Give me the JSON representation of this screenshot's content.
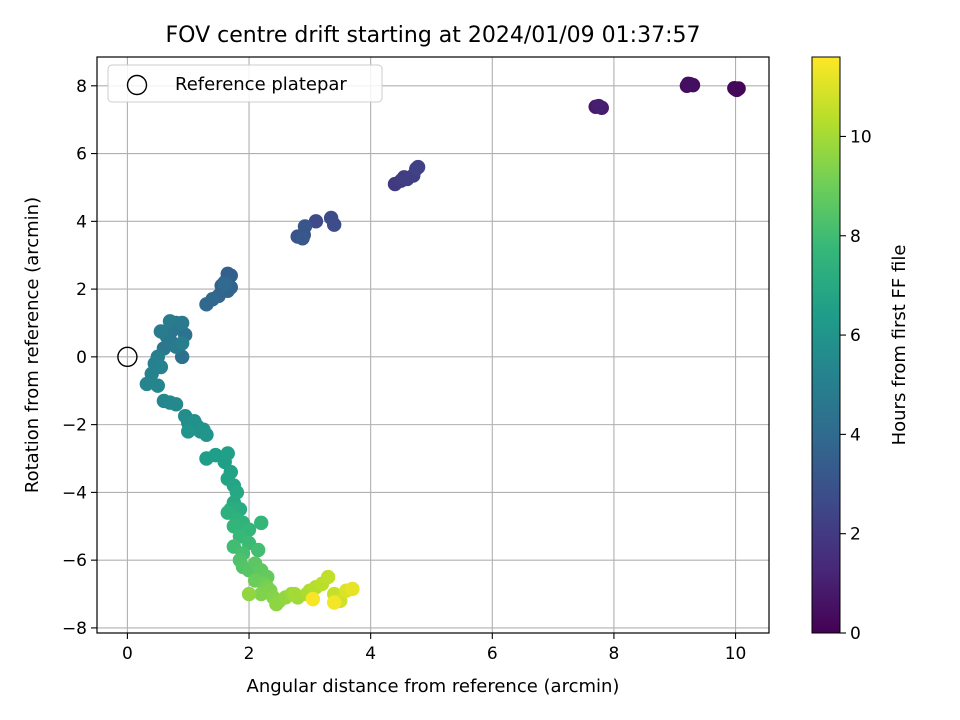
{
  "chart_data": {
    "type": "scatter",
    "title": "FOV centre drift starting at 2024/01/09 01:37:57",
    "xlabel": "Angular distance from reference (arcmin)",
    "ylabel": "Rotation from reference (arcmin)",
    "xlim": [
      -0.5,
      10.55
    ],
    "ylim": [
      -8.15,
      8.85
    ],
    "xticks": [
      0,
      2,
      4,
      6,
      8,
      10
    ],
    "yticks": [
      -8,
      -6,
      -4,
      -2,
      0,
      2,
      4,
      6,
      8
    ],
    "grid": true,
    "legend": {
      "placement": "top-left",
      "entries": [
        {
          "label": "Reference platepar",
          "marker": "open-circle"
        }
      ]
    },
    "reference_point": {
      "x": 0,
      "y": 0
    },
    "colorbar": {
      "label": "Hours from first FF file",
      "range": [
        0,
        11.6
      ],
      "ticks": [
        0,
        2,
        4,
        6,
        8,
        10
      ],
      "colormap": "viridis"
    },
    "colormap_stops": [
      "#440154",
      "#482878",
      "#3e4989",
      "#31688e",
      "#26828e",
      "#1f9e89",
      "#35b779",
      "#6ece58",
      "#b5de2b",
      "#fde725"
    ],
    "series": [
      {
        "points": [
          [
            10.0,
            7.9,
            0.05
          ],
          [
            10.05,
            7.92,
            0.1
          ],
          [
            10.02,
            7.88,
            0.15
          ],
          [
            9.98,
            7.93,
            0.2
          ],
          [
            9.2,
            8.0,
            0.3
          ],
          [
            9.25,
            8.05,
            0.35
          ],
          [
            9.3,
            8.02,
            0.4
          ],
          [
            9.22,
            8.06,
            0.45
          ],
          [
            7.7,
            7.38,
            0.8
          ],
          [
            7.8,
            7.35,
            0.9
          ],
          [
            7.75,
            7.4,
            1.0
          ],
          [
            4.4,
            5.1,
            2.0
          ],
          [
            4.5,
            5.2,
            2.05
          ],
          [
            4.55,
            5.3,
            2.1
          ],
          [
            4.6,
            5.25,
            2.15
          ],
          [
            4.7,
            5.35,
            2.2
          ],
          [
            4.75,
            5.55,
            2.25
          ],
          [
            4.78,
            5.6,
            2.3
          ],
          [
            3.1,
            4.0,
            2.6
          ],
          [
            3.35,
            4.1,
            2.7
          ],
          [
            3.4,
            3.9,
            2.75
          ],
          [
            2.8,
            3.55,
            3.0
          ],
          [
            2.9,
            3.6,
            3.05
          ],
          [
            2.92,
            3.85,
            3.1
          ],
          [
            2.88,
            3.5,
            3.15
          ],
          [
            1.65,
            2.45,
            3.5
          ],
          [
            1.7,
            2.4,
            3.55
          ],
          [
            1.6,
            2.2,
            3.6
          ],
          [
            1.55,
            2.1,
            3.65
          ],
          [
            1.65,
            1.95,
            3.7
          ],
          [
            1.7,
            2.05,
            3.75
          ],
          [
            1.5,
            1.8,
            3.8
          ],
          [
            1.4,
            1.7,
            3.85
          ],
          [
            1.3,
            1.55,
            3.9
          ],
          [
            1.6,
            2.15,
            3.95
          ],
          [
            0.9,
            0.0,
            4.3
          ],
          [
            0.95,
            0.65,
            4.35
          ],
          [
            0.85,
            0.9,
            4.4
          ],
          [
            0.8,
            1.0,
            4.45
          ],
          [
            0.75,
            0.8,
            4.5
          ],
          [
            0.7,
            0.5,
            4.55
          ],
          [
            0.6,
            0.25,
            4.6
          ],
          [
            0.65,
            0.6,
            4.65
          ],
          [
            0.9,
            1.0,
            4.7
          ],
          [
            0.8,
            0.3,
            4.75
          ],
          [
            0.7,
            1.05,
            4.8
          ],
          [
            0.55,
            0.75,
            4.85
          ],
          [
            0.9,
            0.4,
            4.9
          ],
          [
            0.5,
            0.0,
            5.0
          ],
          [
            0.45,
            -0.2,
            5.1
          ],
          [
            0.55,
            -0.3,
            5.15
          ],
          [
            0.4,
            -0.5,
            5.2
          ],
          [
            0.32,
            -0.8,
            5.25
          ],
          [
            0.5,
            -0.85,
            5.3
          ],
          [
            0.6,
            -1.3,
            5.35
          ],
          [
            0.7,
            -1.35,
            5.4
          ],
          [
            0.8,
            -1.4,
            5.45
          ],
          [
            0.95,
            -1.75,
            5.6
          ],
          [
            1.0,
            -1.95,
            5.7
          ],
          [
            1.05,
            -2.1,
            5.75
          ],
          [
            1.1,
            -1.9,
            5.8
          ],
          [
            1.15,
            -2.05,
            5.85
          ],
          [
            1.2,
            -2.2,
            5.9
          ],
          [
            1.25,
            -2.15,
            5.95
          ],
          [
            1.3,
            -2.3,
            6.0
          ],
          [
            1.0,
            -2.2,
            6.05
          ],
          [
            1.3,
            -3.0,
            6.4
          ],
          [
            1.45,
            -2.9,
            6.45
          ],
          [
            1.6,
            -3.1,
            6.5
          ],
          [
            1.65,
            -2.85,
            6.55
          ],
          [
            1.7,
            -3.4,
            6.6
          ],
          [
            1.65,
            -3.6,
            6.7
          ],
          [
            1.75,
            -3.8,
            6.8
          ],
          [
            1.8,
            -4.0,
            6.9
          ],
          [
            1.75,
            -4.3,
            7.0
          ],
          [
            1.85,
            -4.5,
            7.1
          ],
          [
            1.7,
            -4.5,
            7.2
          ],
          [
            1.65,
            -4.6,
            7.3
          ],
          [
            1.8,
            -4.8,
            7.4
          ],
          [
            1.9,
            -4.9,
            7.5
          ],
          [
            1.75,
            -5.0,
            7.6
          ],
          [
            2.0,
            -5.1,
            7.65
          ],
          [
            2.2,
            -4.9,
            7.7
          ],
          [
            1.85,
            -5.3,
            7.8
          ],
          [
            2.0,
            -5.5,
            7.9
          ],
          [
            1.75,
            -5.6,
            8.0
          ],
          [
            2.15,
            -5.7,
            8.05
          ],
          [
            1.9,
            -5.8,
            8.1
          ],
          [
            1.85,
            -6.0,
            8.3
          ],
          [
            1.9,
            -6.2,
            8.4
          ],
          [
            2.0,
            -6.3,
            8.5
          ],
          [
            2.1,
            -6.1,
            8.6
          ],
          [
            2.2,
            -6.3,
            8.7
          ],
          [
            2.3,
            -6.5,
            8.8
          ],
          [
            2.1,
            -6.6,
            8.9
          ],
          [
            2.25,
            -6.7,
            9.0
          ],
          [
            2.3,
            -6.8,
            9.2
          ],
          [
            2.35,
            -6.9,
            9.3
          ],
          [
            2.2,
            -7.0,
            9.35
          ],
          [
            2.4,
            -7.1,
            9.4
          ],
          [
            2.5,
            -7.2,
            9.5
          ],
          [
            2.45,
            -7.3,
            9.6
          ],
          [
            2.0,
            -7.0,
            9.65
          ],
          [
            2.6,
            -7.1,
            9.7
          ],
          [
            2.7,
            -7.0,
            9.8
          ],
          [
            2.8,
            -7.1,
            9.9
          ],
          [
            2.75,
            -7.0,
            10.0
          ],
          [
            2.95,
            -7.0,
            10.1
          ],
          [
            3.0,
            -6.9,
            10.2
          ],
          [
            3.1,
            -6.8,
            10.3
          ],
          [
            3.2,
            -6.7,
            10.4
          ],
          [
            3.3,
            -6.5,
            10.5
          ],
          [
            3.4,
            -7.0,
            10.6
          ],
          [
            3.5,
            -7.2,
            10.8
          ],
          [
            3.6,
            -6.9,
            11.0
          ],
          [
            3.7,
            -6.85,
            11.2
          ],
          [
            3.4,
            -7.25,
            11.4
          ],
          [
            3.05,
            -7.15,
            11.5
          ]
        ]
      }
    ]
  }
}
